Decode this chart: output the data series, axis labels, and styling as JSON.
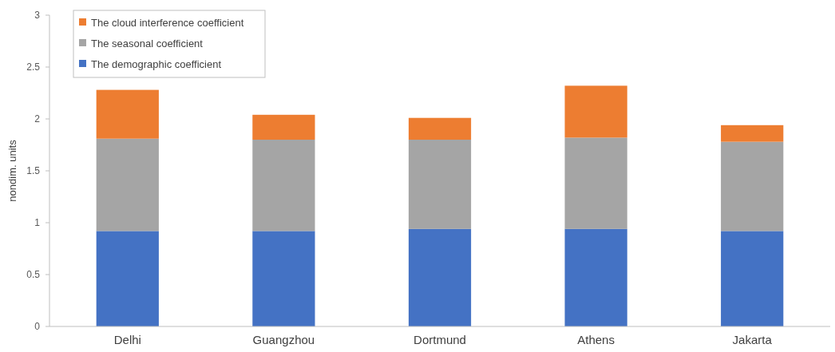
{
  "chart_data": {
    "type": "bar",
    "stacked": true,
    "ylabel": "nondim. units",
    "categories": [
      "Delhi",
      "Guangzhou",
      "Dortmund",
      "Athens",
      "Jakarta"
    ],
    "series": [
      {
        "name": "The demographic coefficient",
        "color": "#4472c4",
        "values": [
          0.92,
          0.92,
          0.94,
          0.94,
          0.92
        ]
      },
      {
        "name": "The seasonal coefficient",
        "color": "#a5a5a5",
        "values": [
          0.89,
          0.88,
          0.86,
          0.88,
          0.86
        ]
      },
      {
        "name": "The cloud interference coefficient",
        "color": "#ed7d31",
        "values": [
          0.47,
          0.24,
          0.21,
          0.5,
          0.16
        ]
      }
    ],
    "ylim": [
      0,
      3
    ],
    "yticks": [
      0,
      0.5,
      1,
      1.5,
      2,
      2.5,
      3
    ],
    "grid": false,
    "legend": "top left"
  }
}
